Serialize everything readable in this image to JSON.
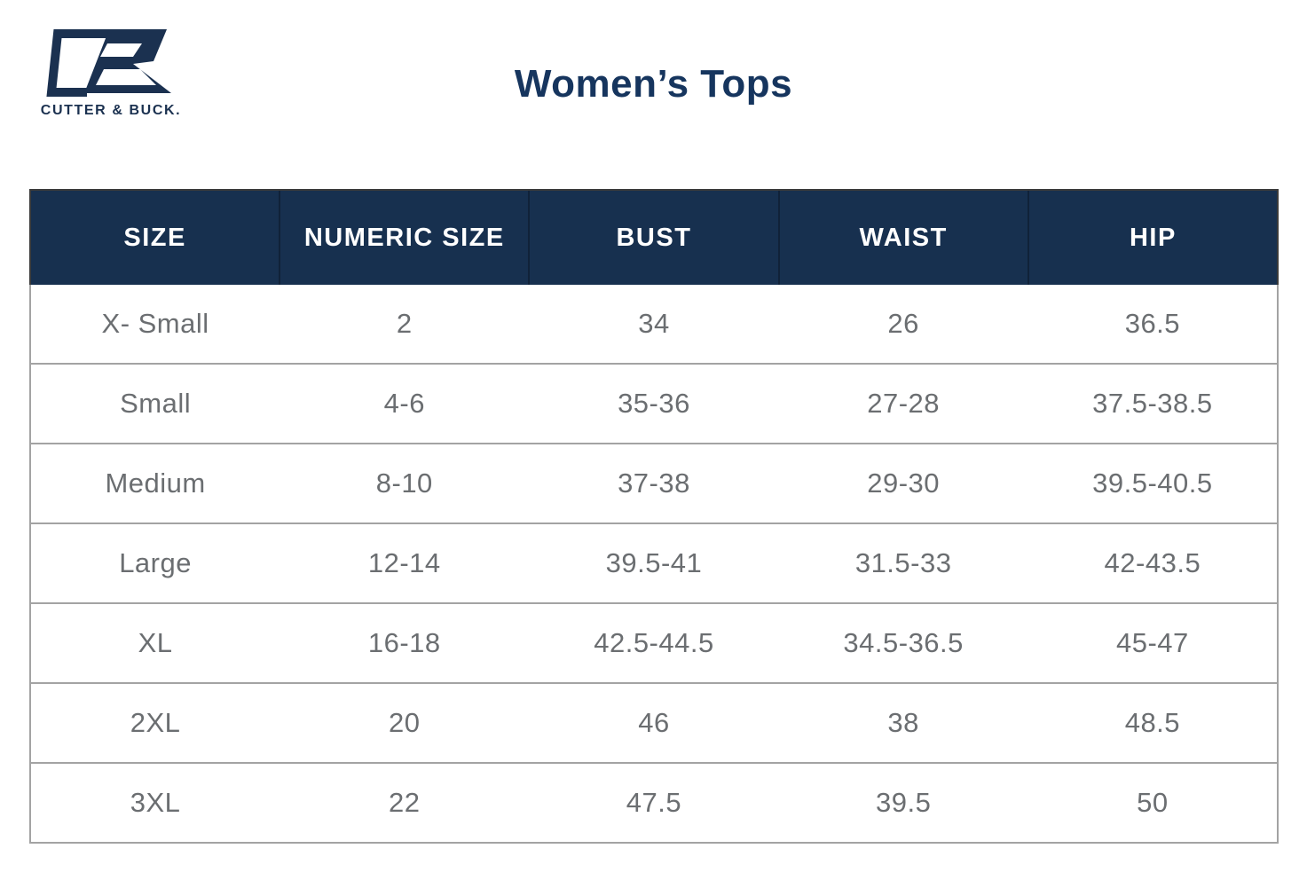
{
  "brand": {
    "logo_text": "CUTTER & BUCK.",
    "logo_color": "#1b3150"
  },
  "page": {
    "title": "Women’s Tops"
  },
  "colors": {
    "header_background": "#17304f",
    "header_text": "#ffffff",
    "cell_text": "#6b6e71",
    "row_border": "#a3a3a3",
    "title_navy": "#16355e"
  },
  "table": {
    "columns": [
      "SIZE",
      "NUMERIC SIZE",
      "BUST",
      "WAIST",
      "HIP"
    ],
    "rows": [
      [
        "X- Small",
        "2",
        "34",
        "26",
        "36.5"
      ],
      [
        "Small",
        "4-6",
        "35-36",
        "27-28",
        "37.5-38.5"
      ],
      [
        "Medium",
        "8-10",
        "37-38",
        "29-30",
        "39.5-40.5"
      ],
      [
        "Large",
        "12-14",
        "39.5-41",
        "31.5-33",
        "42-43.5"
      ],
      [
        "XL",
        "16-18",
        "42.5-44.5",
        "34.5-36.5",
        "45-47"
      ],
      [
        "2XL",
        "20",
        "46",
        "38",
        "48.5"
      ],
      [
        "3XL",
        "22",
        "47.5",
        "39.5",
        "50"
      ]
    ]
  }
}
